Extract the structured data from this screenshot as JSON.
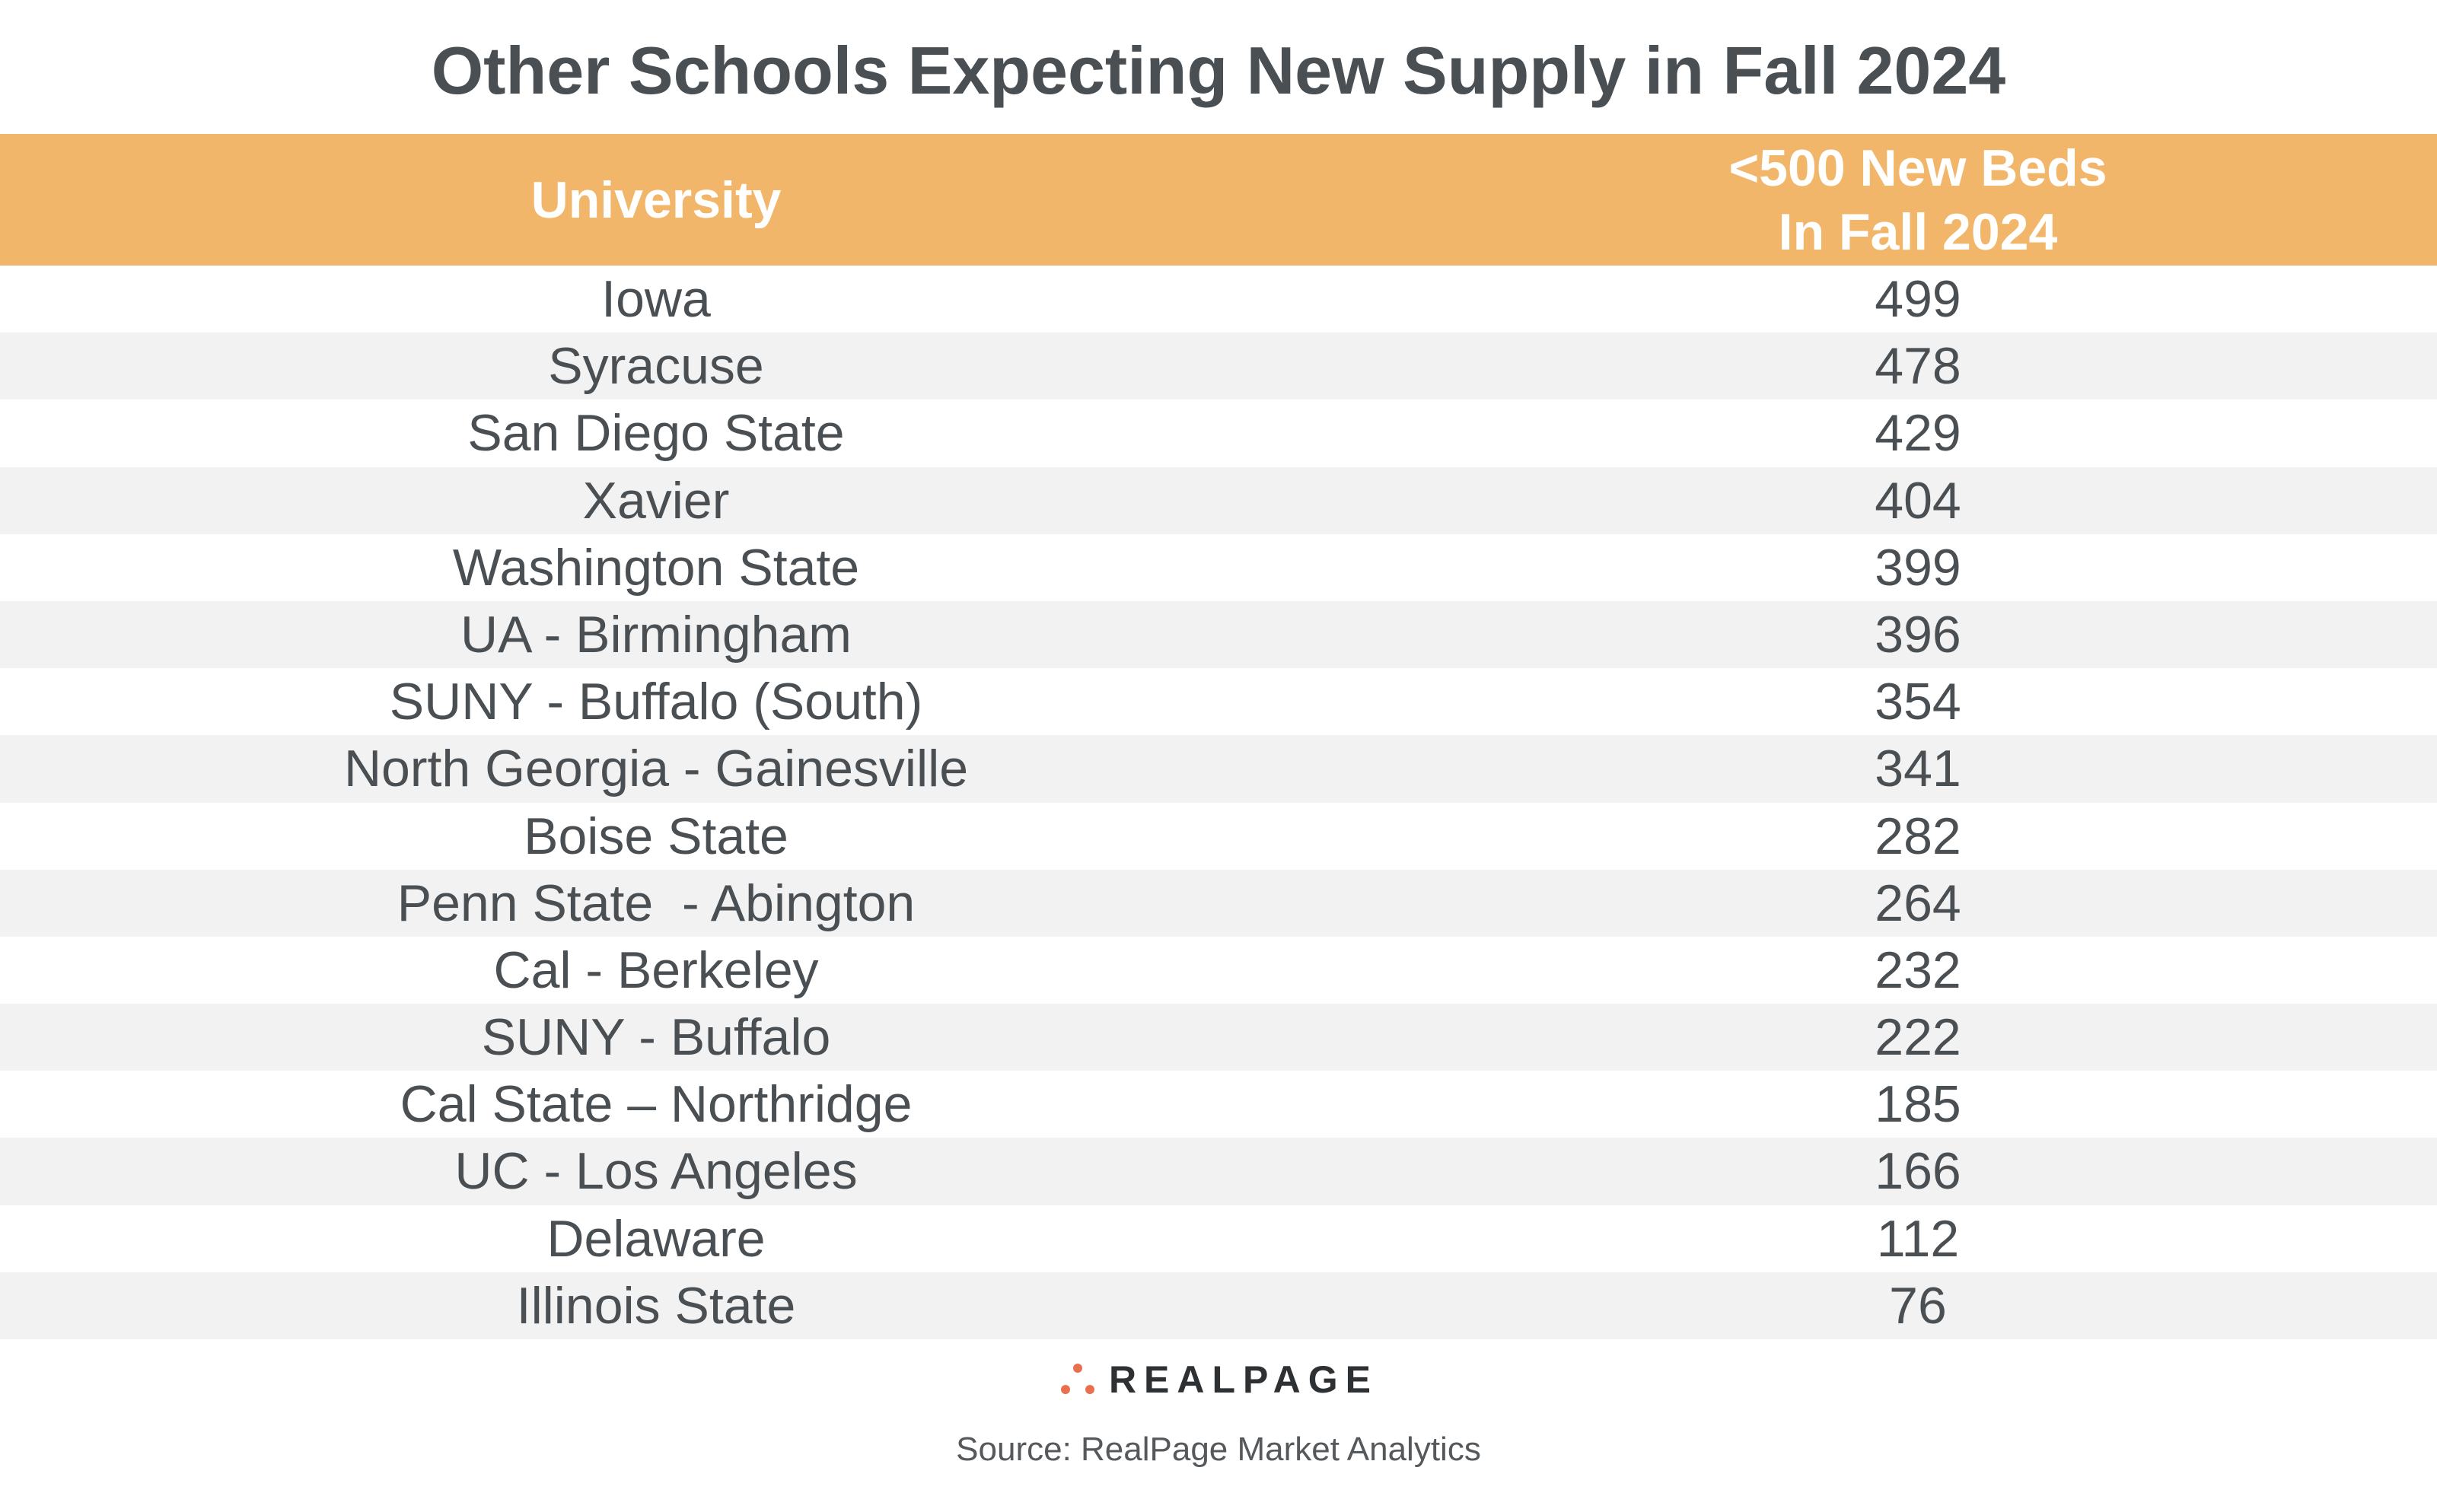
{
  "chart_data": {
    "type": "table",
    "title": "Other Schools Expecting New Supply in Fall 2024",
    "columns": [
      "University",
      "<500 New Beds In Fall 2024"
    ],
    "header": {
      "col1": "University",
      "col2_line1": "<500 New Beds",
      "col2_line2": "In Fall 2024"
    },
    "rows": [
      {
        "university": "Iowa",
        "beds": "499"
      },
      {
        "university": "Syracuse",
        "beds": "478"
      },
      {
        "university": "San Diego State",
        "beds": "429"
      },
      {
        "university": "Xavier",
        "beds": "404"
      },
      {
        "university": "Washington State",
        "beds": "399"
      },
      {
        "university": "UA - Birmingham",
        "beds": "396"
      },
      {
        "university": "SUNY - Buffalo (South)",
        "beds": "354"
      },
      {
        "university": "North Georgia - Gainesville",
        "beds": "341"
      },
      {
        "university": "Boise State",
        "beds": "282"
      },
      {
        "university": "Penn State  - Abington",
        "beds": "264"
      },
      {
        "university": "Cal - Berkeley",
        "beds": "232"
      },
      {
        "university": "SUNY - Buffalo",
        "beds": "222"
      },
      {
        "university": "Cal State – Northridge",
        "beds": "185"
      },
      {
        "university": "UC - Los Angeles",
        "beds": "166"
      },
      {
        "university": "Delaware",
        "beds": "112"
      },
      {
        "university": "Illinois State",
        "beds": "76"
      }
    ]
  },
  "logo": {
    "text": "REALPAGE"
  },
  "source": "Source: RealPage Market Analytics",
  "colors": {
    "header_bg": "#f2b66b",
    "text": "#4a4f53",
    "stripe": "#f2f2f2",
    "logo_dot": "#e8704e"
  }
}
